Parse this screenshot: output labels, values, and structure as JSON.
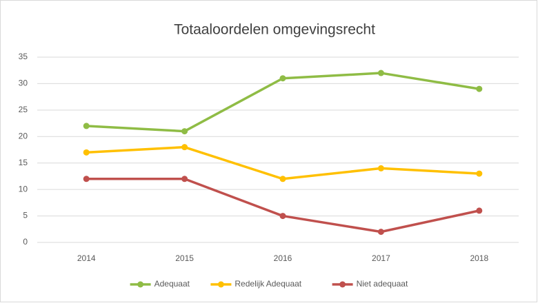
{
  "chart_data": {
    "type": "line",
    "title": "Totaaloordelen omgevingsrecht",
    "categories": [
      "2014",
      "2015",
      "2016",
      "2017",
      "2018"
    ],
    "series": [
      {
        "name": "Adequaat",
        "color": "#8fbc45",
        "values": [
          22,
          21,
          31,
          32,
          29
        ]
      },
      {
        "name": "Redelijk Adequaat",
        "color": "#ffc000",
        "values": [
          17,
          18,
          12,
          14,
          13
        ]
      },
      {
        "name": "Niet adequaat",
        "color": "#c0504d",
        "values": [
          12,
          12,
          5,
          2,
          6
        ]
      }
    ],
    "ylim": [
      0,
      35
    ],
    "yticks": [
      0,
      5,
      10,
      15,
      20,
      25,
      30,
      35
    ],
    "grid": true,
    "legend": "bottom"
  }
}
